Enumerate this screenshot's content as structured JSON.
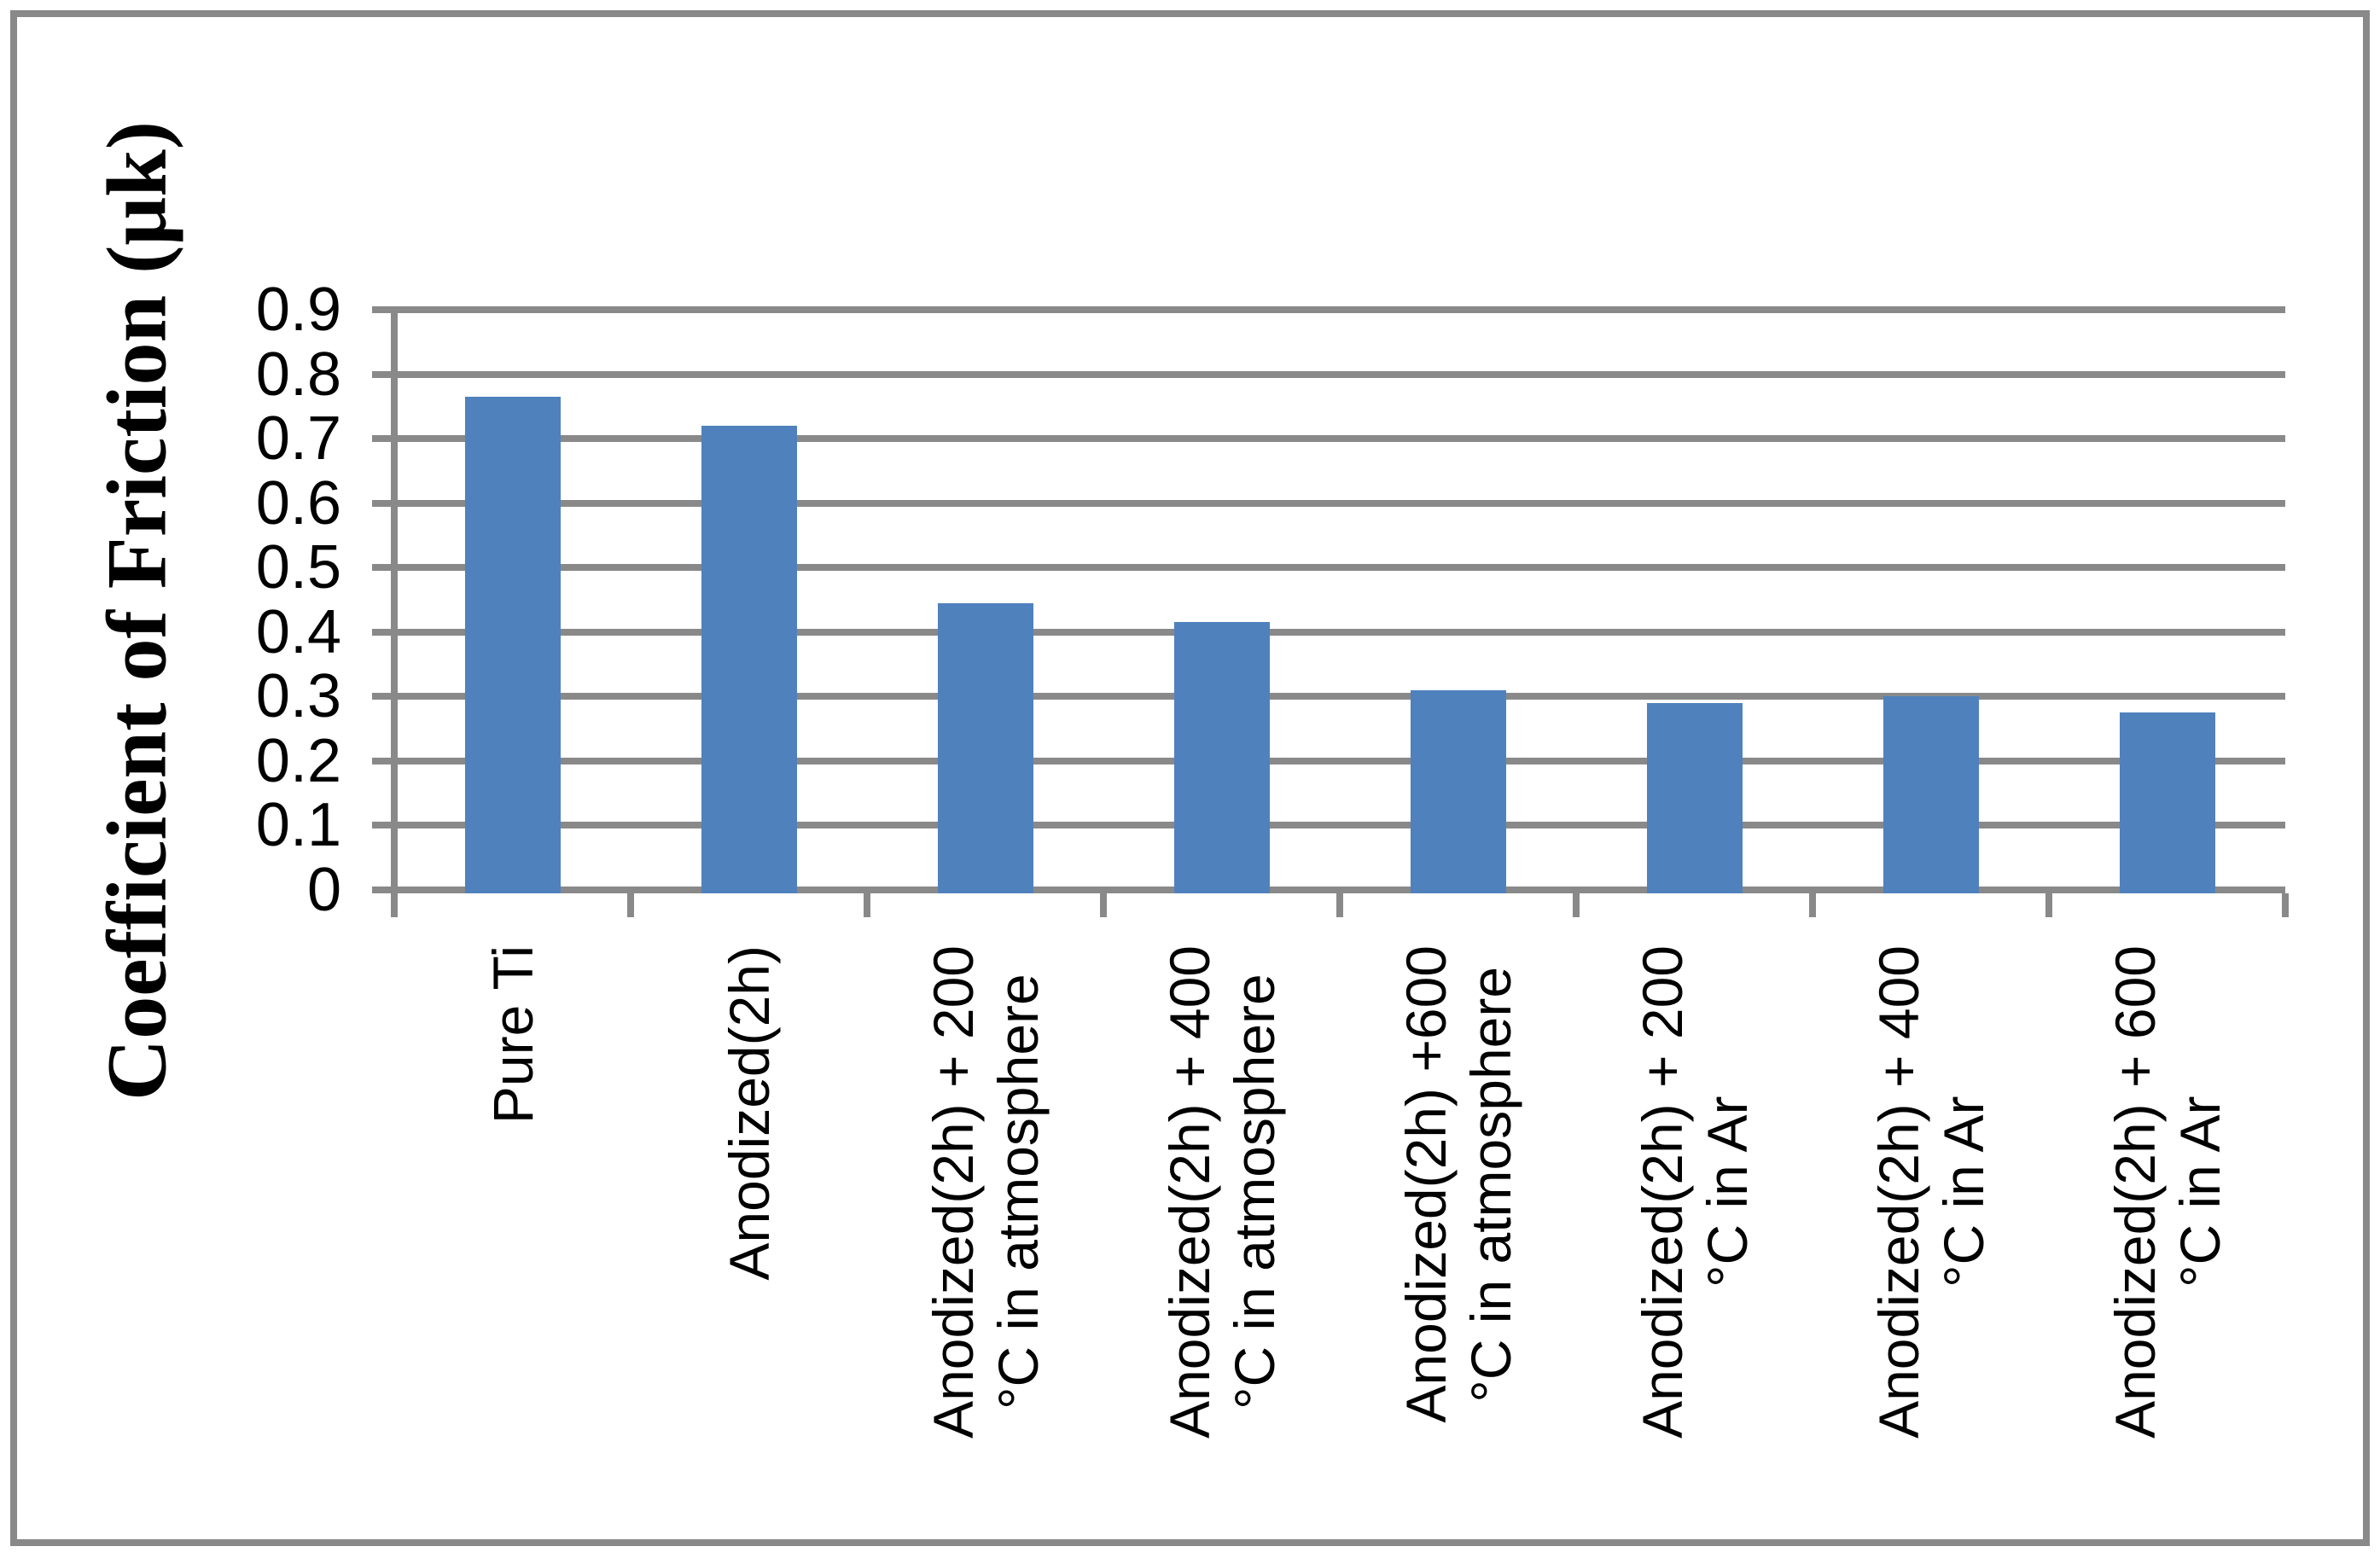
{
  "chart_data": {
    "type": "bar",
    "title": "",
    "ylabel": "Coefficient of Friction (μk)",
    "xlabel": "",
    "ylim": [
      0,
      0.9
    ],
    "ytick_step": 0.1,
    "ytick_labels_top_to_bottom": [
      "0.9",
      "0.8",
      "0.7",
      "0.6",
      "0.5",
      "0.4",
      "0.3",
      "0.2",
      "0.1",
      "0"
    ],
    "grid": true,
    "legend": false,
    "categories": [
      {
        "label": "Pure Ti",
        "lines": [
          "Pure Ti"
        ]
      },
      {
        "label": "Anodized(2h)",
        "lines": [
          "Anodized(2h)"
        ]
      },
      {
        "label": "Anodized(2h) + 200 °C in atmosphere",
        "lines": [
          "Anodized(2h) + 200",
          "°C in atmosphere"
        ]
      },
      {
        "label": "Anodized(2h) + 400 °C in atmosphere",
        "lines": [
          "Anodized(2h) + 400",
          "°C in atmosphere"
        ]
      },
      {
        "label": "Anodized(2h) +600 °C in atmosphere",
        "lines": [
          "Anodized(2h) +600",
          "°C in atmosphere"
        ]
      },
      {
        "label": "Anodized(2h) + 200 °C in Ar",
        "lines": [
          "Anodized(2h) + 200",
          "°C in Ar"
        ]
      },
      {
        "label": "Anodized(2h) + 400 °C in Ar",
        "lines": [
          "Anodized(2h) + 400",
          "°C in Ar"
        ]
      },
      {
        "label": "Anodized(2h) + 600 °C in Ar",
        "lines": [
          "Anodized(2h) + 600",
          "°C in Ar"
        ]
      }
    ],
    "values": [
      0.765,
      0.72,
      0.445,
      0.415,
      0.31,
      0.29,
      0.3,
      0.275
    ],
    "colors": {
      "bar": "#4F81BD",
      "grid": "#898989",
      "axis": "#898989",
      "frame_border": "#898989",
      "text": "#000000",
      "background": "#FFFFFF"
    }
  }
}
